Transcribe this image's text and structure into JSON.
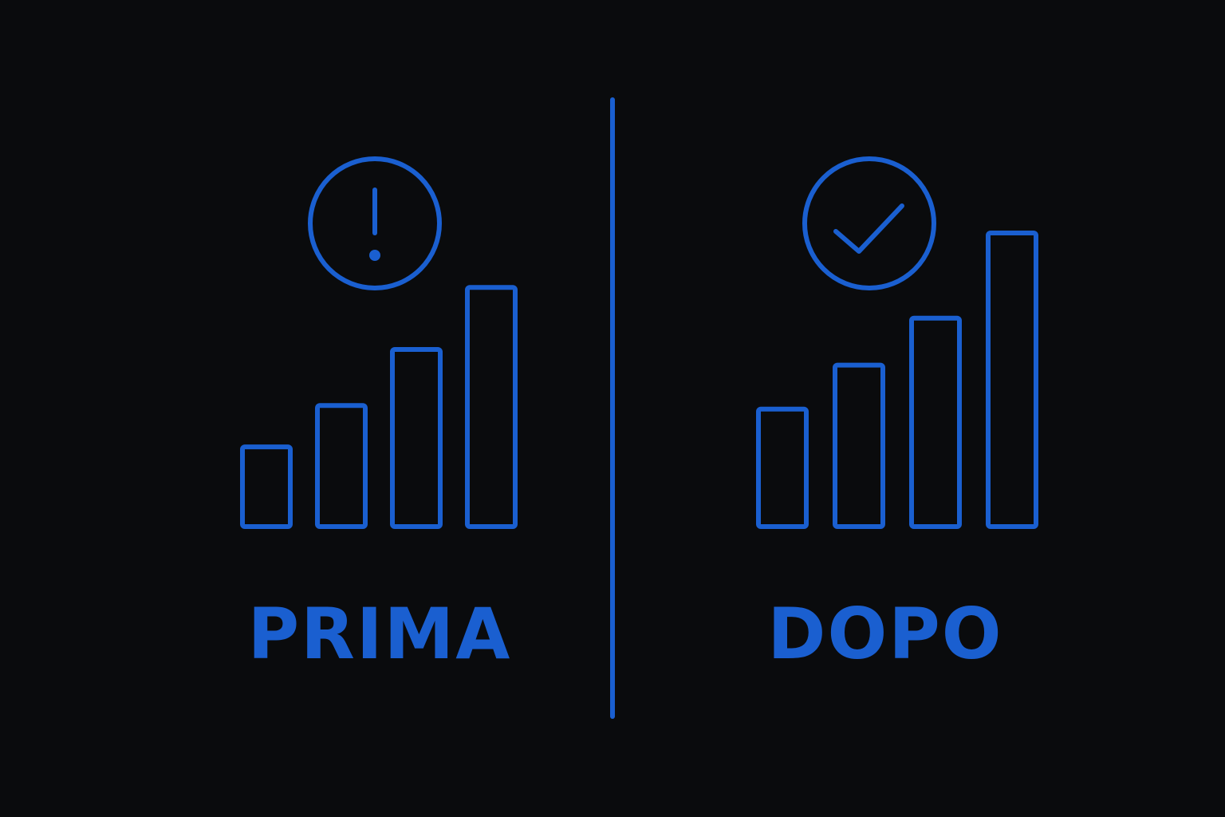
{
  "colors": {
    "background": "#0a0b0d",
    "accent": "#1a5fd0"
  },
  "panels": [
    {
      "label": "PRIMA",
      "status_icon": "warning-icon",
      "bar_levels": [
        0.27,
        0.41,
        0.6,
        0.81
      ]
    },
    {
      "label": "DOPO",
      "status_icon": "check-circle-icon",
      "bar_levels": [
        0.4,
        0.55,
        0.71,
        1.0
      ]
    }
  ]
}
